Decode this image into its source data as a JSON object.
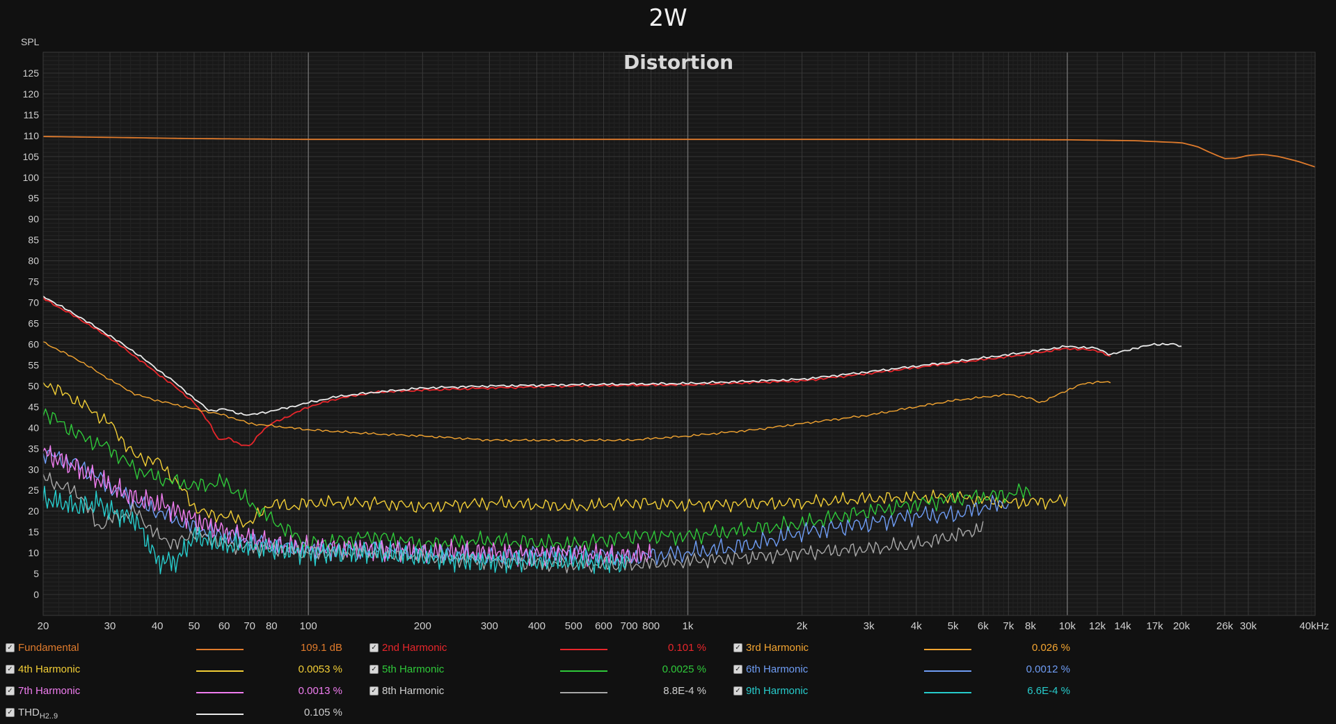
{
  "title": "2W",
  "chart_data": {
    "type": "line",
    "title": "Distortion",
    "ylabel": "SPL",
    "xscale": "log",
    "xlim": [
      20,
      45000
    ],
    "ylim": [
      -5,
      130
    ],
    "yticks": [
      0,
      5,
      10,
      15,
      20,
      25,
      30,
      35,
      40,
      45,
      50,
      55,
      60,
      65,
      70,
      75,
      80,
      85,
      90,
      95,
      100,
      105,
      110,
      115,
      120,
      125
    ],
    "xticks": [
      {
        "v": 20,
        "l": "20"
      },
      {
        "v": 30,
        "l": "30"
      },
      {
        "v": 40,
        "l": "40"
      },
      {
        "v": 50,
        "l": "50"
      },
      {
        "v": 60,
        "l": "60"
      },
      {
        "v": 70,
        "l": "70"
      },
      {
        "v": 80,
        "l": "80"
      },
      {
        "v": 100,
        "l": "100"
      },
      {
        "v": 200,
        "l": "200"
      },
      {
        "v": 300,
        "l": "300"
      },
      {
        "v": 400,
        "l": "400"
      },
      {
        "v": 500,
        "l": "500"
      },
      {
        "v": 600,
        "l": "600"
      },
      {
        "v": 700,
        "l": "700"
      },
      {
        "v": 800,
        "l": "800"
      },
      {
        "v": 1000,
        "l": "1k"
      },
      {
        "v": 2000,
        "l": "2k"
      },
      {
        "v": 3000,
        "l": "3k"
      },
      {
        "v": 4000,
        "l": "4k"
      },
      {
        "v": 5000,
        "l": "5k"
      },
      {
        "v": 6000,
        "l": "6k"
      },
      {
        "v": 7000,
        "l": "7k"
      },
      {
        "v": 8000,
        "l": "8k"
      },
      {
        "v": 10000,
        "l": "10k"
      },
      {
        "v": 12000,
        "l": "12k"
      },
      {
        "v": 14000,
        "l": "14k"
      },
      {
        "v": 17000,
        "l": "17k"
      },
      {
        "v": 20000,
        "l": "20k"
      },
      {
        "v": 26000,
        "l": "26k"
      },
      {
        "v": 30000,
        "l": "30k"
      },
      {
        "v": 40000,
        "l": "40kHz"
      }
    ],
    "grid": true,
    "legend_position": "bottom",
    "series": [
      {
        "name": "Fundamental",
        "color": "#e07b2c",
        "value": "109.1 dB",
        "x": [
          20,
          50,
          100,
          200,
          500,
          1000,
          2000,
          5000,
          10000,
          15000,
          20000,
          22000,
          24000,
          26000,
          28000,
          30000,
          33000,
          36000,
          40000,
          45000
        ],
        "y": [
          109.8,
          109.3,
          109.1,
          109.1,
          109.1,
          109.1,
          109.1,
          109.1,
          109.0,
          108.8,
          108.3,
          107.4,
          105.8,
          104.5,
          104.6,
          105.3,
          105.5,
          105.0,
          104.0,
          102.5
        ],
        "noise": 0
      },
      {
        "name": "2nd Harmonic",
        "color": "#e8262b",
        "value": "0.101 %",
        "x": [
          20,
          25,
          30,
          35,
          40,
          45,
          50,
          55,
          58,
          62,
          66,
          70,
          75,
          80,
          90,
          100,
          120,
          150,
          200,
          300,
          500,
          1000,
          2000,
          3000,
          5000,
          7000,
          10000,
          12000,
          13000
        ],
        "y": [
          71,
          66,
          61.5,
          57,
          53,
          49.5,
          46,
          41,
          37,
          37.5,
          36,
          35.5,
          39,
          41,
          43,
          45,
          47,
          48.5,
          49,
          49.5,
          50,
          50.3,
          51.2,
          53,
          55.5,
          57,
          59,
          58.5,
          57
        ],
        "noise": 0.3
      },
      {
        "name": "3rd Harmonic",
        "color": "#f4a531",
        "value": "0.026 %",
        "x": [
          20,
          25,
          30,
          35,
          40,
          50,
          60,
          70,
          100,
          150,
          200,
          300,
          500,
          700,
          1000,
          1500,
          2000,
          3000,
          4000,
          5000,
          7000,
          8000,
          8500,
          9000,
          10000,
          11000,
          12000,
          13000
        ],
        "y": [
          60.5,
          56,
          51.5,
          48,
          46.5,
          44.5,
          43,
          41,
          39.5,
          38.5,
          38,
          37,
          37,
          37,
          38,
          39.5,
          41,
          43,
          45,
          46.5,
          48,
          47,
          46,
          47,
          49,
          50.5,
          51,
          50.8
        ],
        "noise": 0.3
      },
      {
        "name": "4th Harmonic",
        "color": "#f2ce36",
        "value": "0.0053 %",
        "x": [
          20,
          25,
          30,
          35,
          40,
          45,
          50,
          55,
          60,
          70,
          80,
          90,
          100,
          150,
          200,
          300,
          500,
          700,
          1000,
          2000,
          3000,
          5000,
          7000,
          10000
        ],
        "y": [
          51,
          46,
          41,
          33,
          32,
          27,
          21,
          19,
          19,
          17,
          22,
          21,
          22,
          22,
          21,
          22,
          21,
          22,
          21.5,
          22,
          23,
          23.5,
          22,
          22.5
        ],
        "noise": 1.8
      },
      {
        "name": "5th Harmonic",
        "color": "#2fc93a",
        "value": "0.0025 %",
        "x": [
          20,
          25,
          30,
          35,
          40,
          50,
          60,
          70,
          80,
          100,
          150,
          200,
          300,
          500,
          700,
          1000,
          2000,
          3000,
          5000,
          6000,
          7000,
          8000
        ],
        "y": [
          44,
          38,
          35,
          30,
          28,
          26,
          27,
          22,
          18,
          12,
          14,
          12,
          13,
          12,
          14,
          14,
          17,
          20,
          23,
          23.5,
          24,
          25
        ],
        "noise": 2.2
      },
      {
        "name": "6th Harmonic",
        "color": "#6f9df5",
        "value": "0.0012 %",
        "x": [
          20,
          25,
          30,
          35,
          40,
          50,
          60,
          80,
          100,
          150,
          200,
          300,
          500,
          700,
          1000,
          1500,
          2000,
          3000,
          4000,
          5000,
          6000,
          7000
        ],
        "y": [
          34,
          31,
          26,
          22,
          20,
          16,
          14,
          12,
          11,
          11,
          10,
          9,
          10,
          9,
          10,
          12,
          15,
          17,
          19,
          19,
          21,
          22
        ],
        "noise": 2.5
      },
      {
        "name": "7th Harmonic",
        "color": "#f07df0",
        "value": "0.0013 %",
        "x": [
          20,
          25,
          30,
          35,
          40,
          50,
          60,
          80,
          100,
          150,
          200,
          300,
          400,
          500,
          600,
          700,
          800
        ],
        "y": [
          34,
          30,
          26,
          23,
          22,
          18,
          15,
          12,
          11,
          11,
          10,
          10,
          9.5,
          10,
          9,
          9,
          10
        ],
        "noise": 3
      },
      {
        "name": "8th Harmonic",
        "color": "#a8a8a8",
        "value": "8.8E-4 %",
        "x": [
          20,
          25,
          28,
          30,
          35,
          40,
          45,
          50,
          60,
          80,
          100,
          150,
          200,
          300,
          500,
          700,
          1000,
          1500,
          2000,
          3000,
          4000,
          5000,
          6000
        ],
        "y": [
          28,
          24,
          16,
          18,
          20,
          14,
          12,
          15,
          12,
          11,
          10,
          10,
          9,
          8,
          7,
          7,
          8,
          9,
          10,
          11,
          12,
          14,
          16
        ],
        "noise": 2
      },
      {
        "name": "9th Harmonic",
        "color": "#27cccc",
        "value": "6.6E-4 %",
        "x": [
          20,
          25,
          28,
          30,
          35,
          38,
          40,
          45,
          50,
          60,
          80,
          100,
          150,
          200,
          300,
          500,
          700
        ],
        "y": [
          23,
          21,
          22,
          20,
          18,
          12,
          8,
          8,
          14,
          12,
          11,
          10,
          10,
          9,
          8,
          8,
          7.5
        ],
        "noise": 3
      },
      {
        "name": "THD",
        "name_sub": "H2..9",
        "color": "#eaeaea",
        "value": "0.105 %",
        "x": [
          20,
          25,
          30,
          35,
          40,
          45,
          50,
          55,
          60,
          65,
          70,
          80,
          90,
          100,
          120,
          150,
          200,
          300,
          500,
          1000,
          2000,
          3000,
          5000,
          7000,
          10000,
          12000,
          13000,
          15000,
          17000,
          19000,
          20000
        ],
        "y": [
          71.5,
          66.5,
          62,
          58,
          54,
          50.5,
          47,
          44,
          44.5,
          43.5,
          43,
          44,
          45,
          46,
          47.5,
          48.5,
          49.5,
          50,
          50.3,
          50.6,
          51.6,
          53.4,
          55.8,
          57.5,
          59.5,
          59,
          57.5,
          59,
          60,
          60,
          59.5
        ],
        "noise": 0.3
      }
    ]
  }
}
